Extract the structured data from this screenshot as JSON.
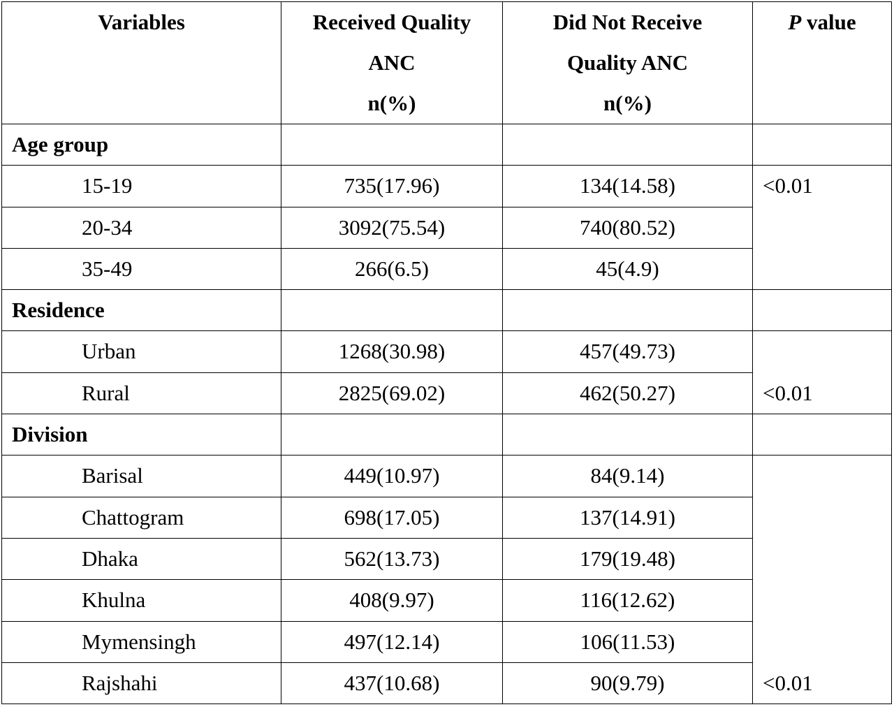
{
  "table": {
    "headers": {
      "variables": "Variables",
      "received": [
        "Received Quality",
        "ANC",
        "n(%)"
      ],
      "not_received": [
        "Did Not Receive",
        "Quality ANC",
        "n(%)"
      ],
      "p_letter": "P",
      "p_rest": " value"
    },
    "sections": [
      {
        "title": "Age group",
        "p_value": "<0.01",
        "rows": [
          {
            "label": "15-19",
            "received": "735(17.96)",
            "not_received": "134(14.58)"
          },
          {
            "label": "20-34",
            "received": "3092(75.54)",
            "not_received": "740(80.52)"
          },
          {
            "label": "35-49",
            "received": "266(6.5)",
            "not_received": "45(4.9)"
          }
        ]
      },
      {
        "title": "Residence",
        "p_value": "<0.01",
        "rows": [
          {
            "label": "Urban",
            "received": "1268(30.98)",
            "not_received": "457(49.73)"
          },
          {
            "label": "Rural",
            "received": "2825(69.02)",
            "not_received": "462(50.27)"
          }
        ]
      },
      {
        "title": "Division",
        "p_value": "<0.01",
        "rows": [
          {
            "label": "Barisal",
            "received": "449(10.97)",
            "not_received": "84(9.14)"
          },
          {
            "label": "Chattogram",
            "received": "698(17.05)",
            "not_received": "137(14.91)"
          },
          {
            "label": "Dhaka",
            "received": "562(13.73)",
            "not_received": "179(19.48)"
          },
          {
            "label": "Khulna",
            "received": "408(9.97)",
            "not_received": "116(12.62)"
          },
          {
            "label": "Mymensingh",
            "received": "497(12.14)",
            "not_received": "106(11.53)"
          },
          {
            "label": "Rajshahi",
            "received": "437(10.68)",
            "not_received": "90(9.79)"
          }
        ]
      }
    ]
  }
}
